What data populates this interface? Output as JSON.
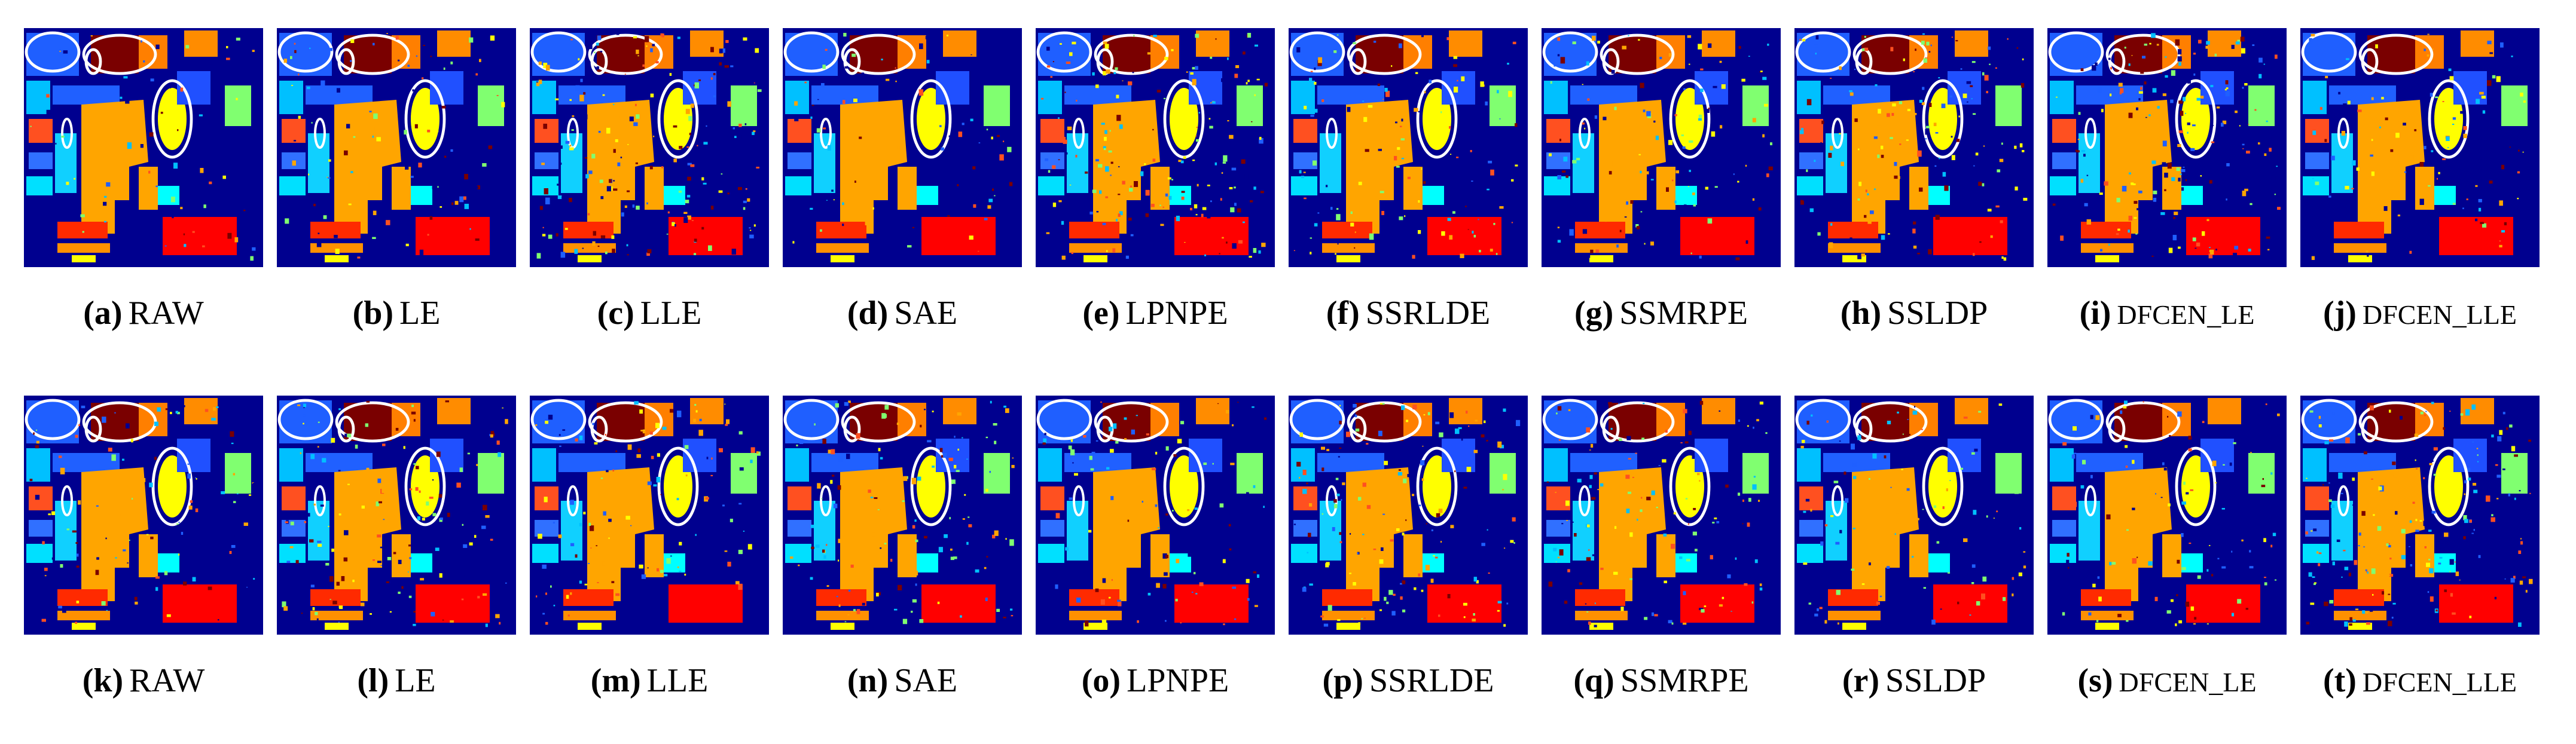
{
  "panels": [
    {
      "letter": "(a)",
      "label": "RAW"
    },
    {
      "letter": "(b)",
      "label": "LE"
    },
    {
      "letter": "(c)",
      "label": "LLE"
    },
    {
      "letter": "(d)",
      "label": "SAE"
    },
    {
      "letter": "(e)",
      "label": "LPNPE"
    },
    {
      "letter": "(f)",
      "label": "SSRLDE"
    },
    {
      "letter": "(g)",
      "label": "SSMRPE"
    },
    {
      "letter": "(h)",
      "label": "SSLDP"
    },
    {
      "letter": "(i)",
      "label": "DFCEN_LE"
    },
    {
      "letter": "(j)",
      "label": "DFCEN_LLE"
    },
    {
      "letter": "(k)",
      "label": "RAW"
    },
    {
      "letter": "(l)",
      "label": "LE"
    },
    {
      "letter": "(m)",
      "label": "LLE"
    },
    {
      "letter": "(n)",
      "label": "SAE"
    },
    {
      "letter": "(o)",
      "label": "LPNPE"
    },
    {
      "letter": "(p)",
      "label": "SSRLDE"
    },
    {
      "letter": "(q)",
      "label": "SSMRPE"
    },
    {
      "letter": "(r)",
      "label": "SSLDP"
    },
    {
      "letter": "(s)",
      "label": "DFCEN_LE"
    },
    {
      "letter": "(t)",
      "label": "DFCEN_LLE"
    }
  ]
}
